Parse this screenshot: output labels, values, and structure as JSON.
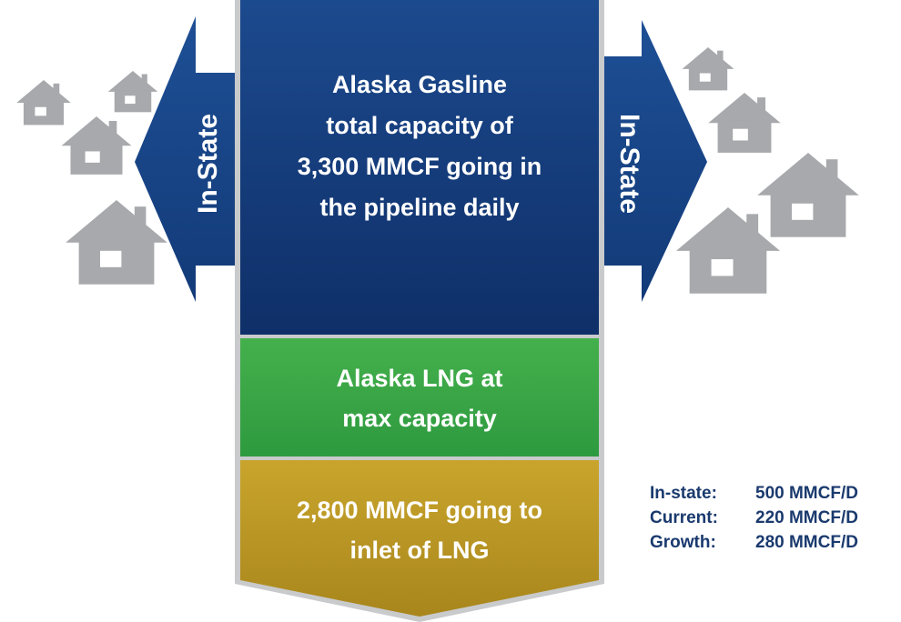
{
  "center": {
    "blocks": [
      {
        "lines": [
          "Alaska Gasline",
          "total capacity of",
          "3,300 MMCF going in",
          "the pipeline daily"
        ]
      },
      {
        "lines": [
          "Alaska LNG at",
          "max capacity"
        ]
      },
      {
        "lines": [
          "2,800 MMCF going to",
          "inlet of LNG"
        ]
      }
    ]
  },
  "arrows": {
    "left": "In-State",
    "right": "In-State"
  },
  "stats": [
    [
      "In-state:",
      "500 MMCF/D"
    ],
    [
      "Current:",
      "220 MMCF/D"
    ],
    [
      "Growth:",
      "280 MMCF/D"
    ]
  ]
}
